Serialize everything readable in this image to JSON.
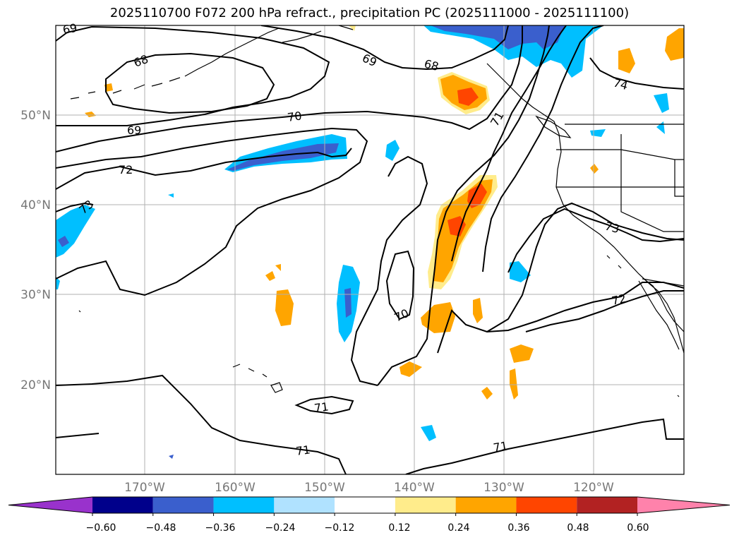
{
  "title": "2025110700 F072 200 hPa refract., precipitation PC (2025111000 - 2025111100)",
  "lat_labels": [
    "50°N",
    "40°N",
    "30°N",
    "20°N"
  ],
  "lon_labels": [
    "170°W",
    "160°W",
    "150°W",
    "140°W",
    "130°W",
    "120°W"
  ],
  "contour_labels": [
    "69",
    "68",
    "69",
    "68",
    "70",
    "69",
    "72",
    "73",
    "71",
    "74",
    "73",
    "70",
    "72",
    "71",
    "71",
    "71"
  ],
  "colorbar": {
    "ticks": [
      "−0.60",
      "−0.48",
      "−0.36",
      "−0.24",
      "−0.12",
      "0.12",
      "0.24",
      "0.36",
      "0.48",
      "0.60"
    ],
    "colors": [
      "#9932cc",
      "#00008b",
      "#3a5fcd",
      "#00bfff",
      "#b0e2ff",
      "#ffffff",
      "#ffec8b",
      "#ffa500",
      "#ff4500",
      "#b22222",
      "#ff82ab"
    ]
  },
  "colors": {
    "contour": "#000000",
    "grid": "#b0b0b0",
    "coast": "#000000"
  }
}
